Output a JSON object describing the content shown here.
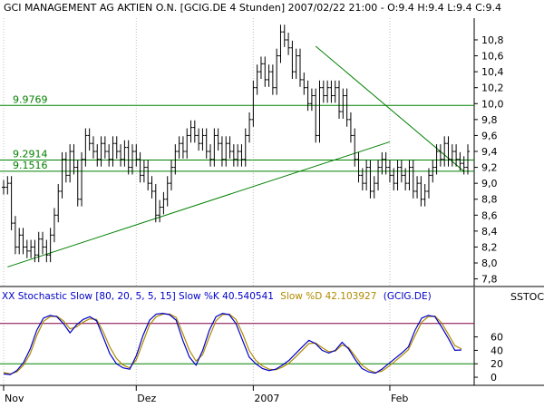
{
  "chart_data": [
    {
      "type": "ohlc-bar",
      "title": "GCI MANAGEMENT AG AKTIEN O.N. [GCIG.DE  4 Stunden] 2007/02/22 21:00 - O:9.4 H:9.4 L:9.4 C:9.4",
      "ylim": [
        7.75,
        11.05
      ],
      "y_ticks": [
        "10,8",
        "10,6",
        "10,4",
        "10,2",
        "10,0",
        "9,8",
        "9,6",
        "9,4",
        "9,2",
        "9,0",
        "8,8",
        "8,6",
        "8,4",
        "8,2",
        "8,0",
        "7,8"
      ],
      "y_tick_values": [
        10.8,
        10.6,
        10.4,
        10.2,
        10.0,
        9.8,
        9.6,
        9.4,
        9.2,
        9.0,
        8.8,
        8.6,
        8.4,
        8.2,
        8.0,
        7.8
      ],
      "bar_count": 120,
      "series": [
        {
          "values": [
            8.95,
            9.0,
            8.5,
            8.2,
            8.35,
            8.2,
            8.15,
            8.2,
            8.1,
            8.3,
            8.2,
            8.1,
            8.35,
            8.6,
            8.9,
            9.3,
            9.1,
            9.4,
            9.2,
            8.8,
            9.3,
            9.6,
            9.5,
            9.4,
            9.3,
            9.5,
            9.4,
            9.3,
            9.5,
            9.4,
            9.3,
            9.45,
            9.2,
            9.4,
            9.3,
            9.1,
            9.2,
            9.0,
            8.9,
            8.6,
            8.7,
            8.8,
            9.0,
            9.2,
            9.4,
            9.5,
            9.4,
            9.6,
            9.7,
            9.6,
            9.5,
            9.6,
            9.4,
            9.3,
            9.6,
            9.5,
            9.3,
            9.5,
            9.4,
            9.3,
            9.4,
            9.3,
            9.6,
            9.8,
            10.2,
            10.4,
            10.5,
            10.3,
            10.4,
            10.2,
            10.6,
            10.9,
            10.8,
            10.7,
            10.4,
            10.6,
            10.3,
            10.2,
            10.0,
            10.1,
            9.6,
            10.2,
            10.1,
            10.2,
            10.1,
            10.2,
            9.9,
            10.1,
            9.8,
            9.6,
            9.3,
            9.1,
            9.0,
            9.2,
            8.9,
            9.0,
            9.2,
            9.3,
            9.2,
            9.1,
            9.0,
            9.2,
            9.1,
            9.0,
            9.2,
            8.9,
            9.0,
            8.8,
            8.9,
            9.1,
            9.2,
            9.4,
            9.3,
            9.5,
            9.3,
            9.4,
            9.3,
            9.25,
            9.2,
            9.4
          ],
          "range": 0.15
        }
      ],
      "horizontal_levels": [
        {
          "value": 9.9769,
          "label": "9.9769"
        },
        {
          "value": 9.2914,
          "label": "9.2914"
        },
        {
          "value": 9.1516,
          "label": "9.1516"
        }
      ],
      "trendlines": [
        {
          "from": [
            1,
            7.95
          ],
          "to": [
            99,
            9.52
          ]
        },
        {
          "from": [
            80,
            10.72
          ],
          "to": [
            118,
            9.15
          ]
        }
      ],
      "x_labels": [
        {
          "label": "Nov",
          "index": 0
        },
        {
          "label": "Dez",
          "index": 34
        },
        {
          "label": "2007",
          "index": 64
        },
        {
          "label": "Feb",
          "index": 99
        }
      ],
      "colors": {
        "price": "#000000",
        "level": "#008000",
        "trend": "#008000",
        "axis": "#000000"
      }
    },
    {
      "type": "line",
      "title": "XX Stochastic Slow [80, 20, 5, 5, 15] Slow %K 40.540541 Slow %D 42.103927 (GCIG.DE)",
      "title_parts": [
        {
          "text": "XX Stochastic Slow [80, 20, 5, 5, 15] Slow %K 40.540541",
          "color": "#0000c8"
        },
        {
          "text": "Slow %D 42.103927",
          "color": "#b08a00"
        },
        {
          "text": "(GCIG.DE)",
          "color": "#0000c8"
        }
      ],
      "right_label": "SSTOC",
      "ylim": [
        -8,
        108
      ],
      "y_ticks": [
        "60",
        "40",
        "20",
        "0"
      ],
      "y_tick_values": [
        60,
        40,
        20,
        0
      ],
      "reference_lines": [
        80,
        20
      ],
      "series": [
        {
          "name": "Slow %K",
          "color": "#0000c8",
          "values": [
            5,
            4,
            10,
            22,
            42,
            70,
            88,
            92,
            90,
            80,
            66,
            78,
            86,
            90,
            84,
            60,
            35,
            20,
            14,
            12,
            32,
            62,
            85,
            94,
            95,
            93,
            85,
            55,
            30,
            18,
            40,
            70,
            90,
            95,
            93,
            80,
            55,
            30,
            20,
            13,
            10,
            12,
            18,
            25,
            35,
            45,
            55,
            50,
            40,
            36,
            40,
            52,
            42,
            26,
            13,
            8,
            6,
            12,
            20,
            28,
            36,
            45,
            70,
            88,
            92,
            90,
            75,
            58,
            40,
            40.5
          ]
        },
        {
          "name": "Slow %D",
          "color": "#b08a00",
          "values": [
            7,
            5,
            8,
            18,
            35,
            62,
            83,
            90,
            91,
            84,
            72,
            75,
            82,
            87,
            86,
            68,
            45,
            28,
            18,
            14,
            26,
            52,
            78,
            90,
            94,
            94,
            89,
            65,
            40,
            24,
            34,
            60,
            84,
            93,
            94,
            86,
            65,
            40,
            25,
            17,
            12,
            11,
            15,
            21,
            30,
            40,
            50,
            51,
            44,
            38,
            39,
            48,
            44,
            31,
            18,
            11,
            7,
            9,
            16,
            24,
            32,
            41,
            62,
            82,
            90,
            91,
            81,
            64,
            47,
            42.1
          ]
        }
      ],
      "x_labels": [
        "Nov",
        "Dez",
        "2007",
        "Feb"
      ]
    }
  ]
}
